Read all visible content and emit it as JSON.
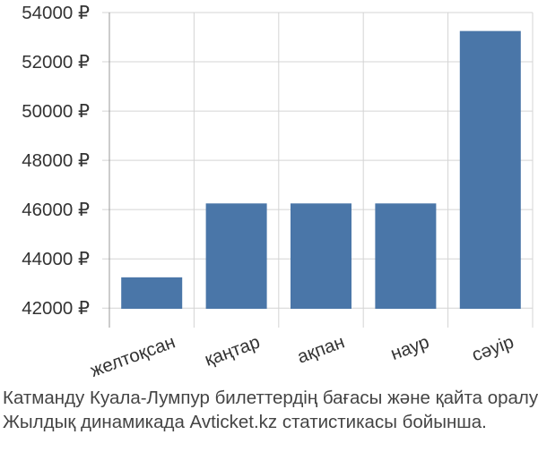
{
  "chart_data": {
    "type": "bar",
    "categories": [
      "желтоқсан",
      "қаңтар",
      "ақпан",
      "наур",
      "сәуір"
    ],
    "values": [
      43250,
      46250,
      46250,
      46250,
      53250
    ],
    "ylim": [
      41500,
      54000
    ],
    "yticks": [
      42000,
      44000,
      46000,
      48000,
      50000,
      52000,
      54000
    ],
    "ytick_labels": [
      "42000 ₽",
      "44000 ₽",
      "46000 ₽",
      "48000 ₽",
      "50000 ₽",
      "52000 ₽",
      "54000 ₽"
    ],
    "grid": true,
    "colors": {
      "bar": "#4a76a8",
      "grid": "#d4d4d4",
      "axis": "#999999"
    }
  },
  "caption": {
    "line1": "Катманду Куала-Лумпур билеттердің бағасы және қайта оралу",
    "line2": "Жылдық динамикада Avticket.kz статистикасы бойынша."
  }
}
